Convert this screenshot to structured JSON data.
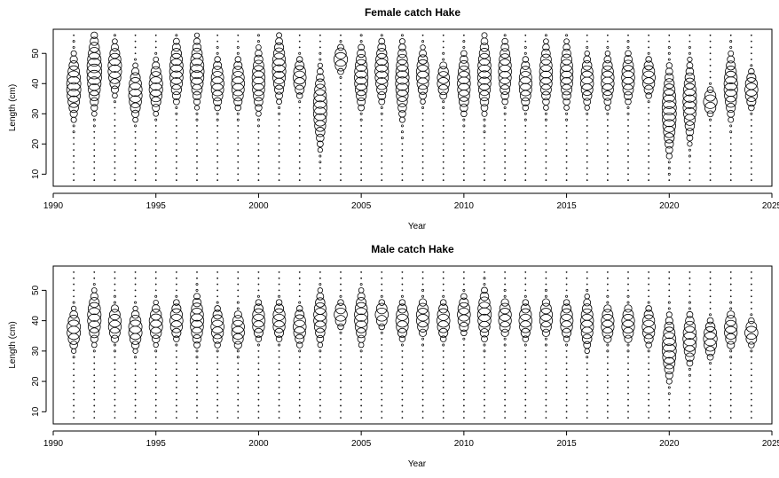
{
  "chart_data": [
    {
      "type": "scatter",
      "subtype": "bubble",
      "title": "Female catch Hake",
      "xlabel": "Year",
      "ylabel": "Length (cm)",
      "xlim": [
        1990,
        2025
      ],
      "ylim": [
        6,
        58
      ],
      "x_ticks": [
        1990,
        1995,
        2000,
        2005,
        2010,
        2015,
        2020,
        2025
      ],
      "y_ticks": [
        10,
        20,
        30,
        40,
        50
      ],
      "grid": false,
      "legend": "none",
      "years": [
        1991,
        1992,
        1993,
        1994,
        1995,
        1996,
        1997,
        1998,
        1999,
        2000,
        2001,
        2002,
        2003,
        2004,
        2005,
        2006,
        2007,
        2008,
        2009,
        2010,
        2011,
        2012,
        2013,
        2014,
        2015,
        2016,
        2017,
        2018,
        2019,
        2020,
        2021,
        2022,
        2023,
        2024
      ],
      "mode_length": [
        39,
        44,
        45,
        37,
        39,
        44,
        44,
        40,
        40,
        41,
        45,
        42,
        32,
        48,
        42,
        44,
        41,
        43,
        41,
        40,
        43,
        44,
        40,
        43,
        43,
        41,
        41,
        42,
        42,
        31,
        34,
        34,
        39,
        38
      ],
      "spread": [
        5,
        6,
        4,
        4,
        4,
        5,
        5,
        4,
        4,
        5,
        5,
        3,
        6,
        2,
        5,
        5,
        6,
        4,
        3,
        5,
        6,
        5,
        4,
        5,
        5,
        4,
        4,
        4,
        3,
        7,
        6,
        2,
        5,
        3
      ],
      "mode_value": [
        0.55,
        0.6,
        0.5,
        0.5,
        0.5,
        0.5,
        0.55,
        0.45,
        0.45,
        0.45,
        0.5,
        0.45,
        0.5,
        0.5,
        0.5,
        0.5,
        0.5,
        0.45,
        0.4,
        0.45,
        0.5,
        0.45,
        0.45,
        0.45,
        0.45,
        0.45,
        0.45,
        0.45,
        0.45,
        0.55,
        0.5,
        0.5,
        0.5,
        0.45
      ]
    },
    {
      "type": "scatter",
      "subtype": "bubble",
      "title": "Male catch Hake",
      "xlabel": "Year",
      "ylabel": "Length (cm)",
      "xlim": [
        1990,
        2025
      ],
      "ylim": [
        6,
        58
      ],
      "x_ticks": [
        1990,
        1995,
        2000,
        2005,
        2010,
        2015,
        2020,
        2025
      ],
      "y_ticks": [
        10,
        20,
        30,
        40,
        50
      ],
      "grid": false,
      "legend": "none",
      "years": [
        1991,
        1992,
        1993,
        1994,
        1995,
        1996,
        1997,
        1998,
        1999,
        2000,
        2001,
        2002,
        2003,
        2004,
        2005,
        2006,
        2007,
        2008,
        2009,
        2010,
        2011,
        2012,
        2013,
        2014,
        2015,
        2016,
        2017,
        2018,
        2019,
        2020,
        2021,
        2022,
        2023,
        2024
      ],
      "mode_length": [
        37,
        41,
        39,
        37,
        39,
        40,
        40,
        38,
        37,
        40,
        40,
        38,
        41,
        42,
        41,
        42,
        40,
        41,
        40,
        42,
        42,
        41,
        40,
        41,
        40,
        39,
        39,
        39,
        38,
        31,
        34,
        34,
        37,
        36
      ],
      "spread": [
        3,
        4,
        3,
        3,
        3,
        3,
        4,
        3,
        3,
        3,
        3,
        3,
        4,
        2,
        4,
        2,
        3,
        3,
        3,
        3,
        4,
        3,
        3,
        3,
        3,
        4,
        3,
        3,
        3,
        5,
        4,
        3,
        3,
        2
      ],
      "mode_value": [
        0.5,
        0.5,
        0.45,
        0.5,
        0.5,
        0.45,
        0.5,
        0.45,
        0.45,
        0.45,
        0.45,
        0.45,
        0.45,
        0.45,
        0.5,
        0.45,
        0.45,
        0.45,
        0.45,
        0.45,
        0.5,
        0.45,
        0.45,
        0.45,
        0.45,
        0.45,
        0.45,
        0.45,
        0.45,
        0.55,
        0.5,
        0.5,
        0.45,
        0.45
      ]
    }
  ]
}
